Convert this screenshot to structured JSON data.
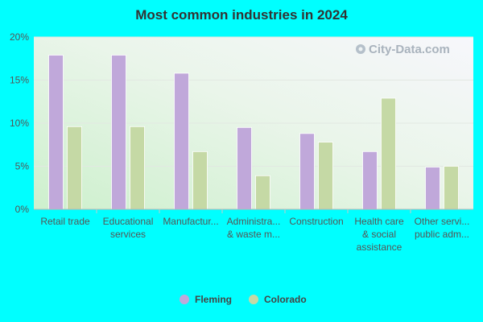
{
  "chart_data": {
    "type": "bar",
    "title": "Most common industries in 2024",
    "xlabel": "",
    "ylabel": "",
    "ylim": [
      0,
      20
    ],
    "yticks": [
      "0%",
      "5%",
      "10%",
      "15%",
      "20%"
    ],
    "ytick_values": [
      0,
      5,
      10,
      15,
      20
    ],
    "categories": [
      [
        "Retail trade"
      ],
      [
        "Educational",
        "services"
      ],
      [
        "Manufactur..."
      ],
      [
        "Administra...",
        "& waste m..."
      ],
      [
        "Construction"
      ],
      [
        "Health care",
        "& social",
        "assistance"
      ],
      [
        "Other servi...",
        "public adm..."
      ]
    ],
    "series": [
      {
        "name": "Fleming",
        "color": "#c0a8da",
        "values": [
          17.9,
          17.9,
          15.8,
          9.5,
          8.8,
          6.7,
          4.9
        ]
      },
      {
        "name": "Colorado",
        "color": "#c5d9a5",
        "values": [
          9.6,
          9.6,
          6.7,
          3.9,
          7.8,
          12.9,
          5.0
        ]
      }
    ],
    "grid": true,
    "legend_position": "bottom-center"
  },
  "watermark": "City-Data.com"
}
